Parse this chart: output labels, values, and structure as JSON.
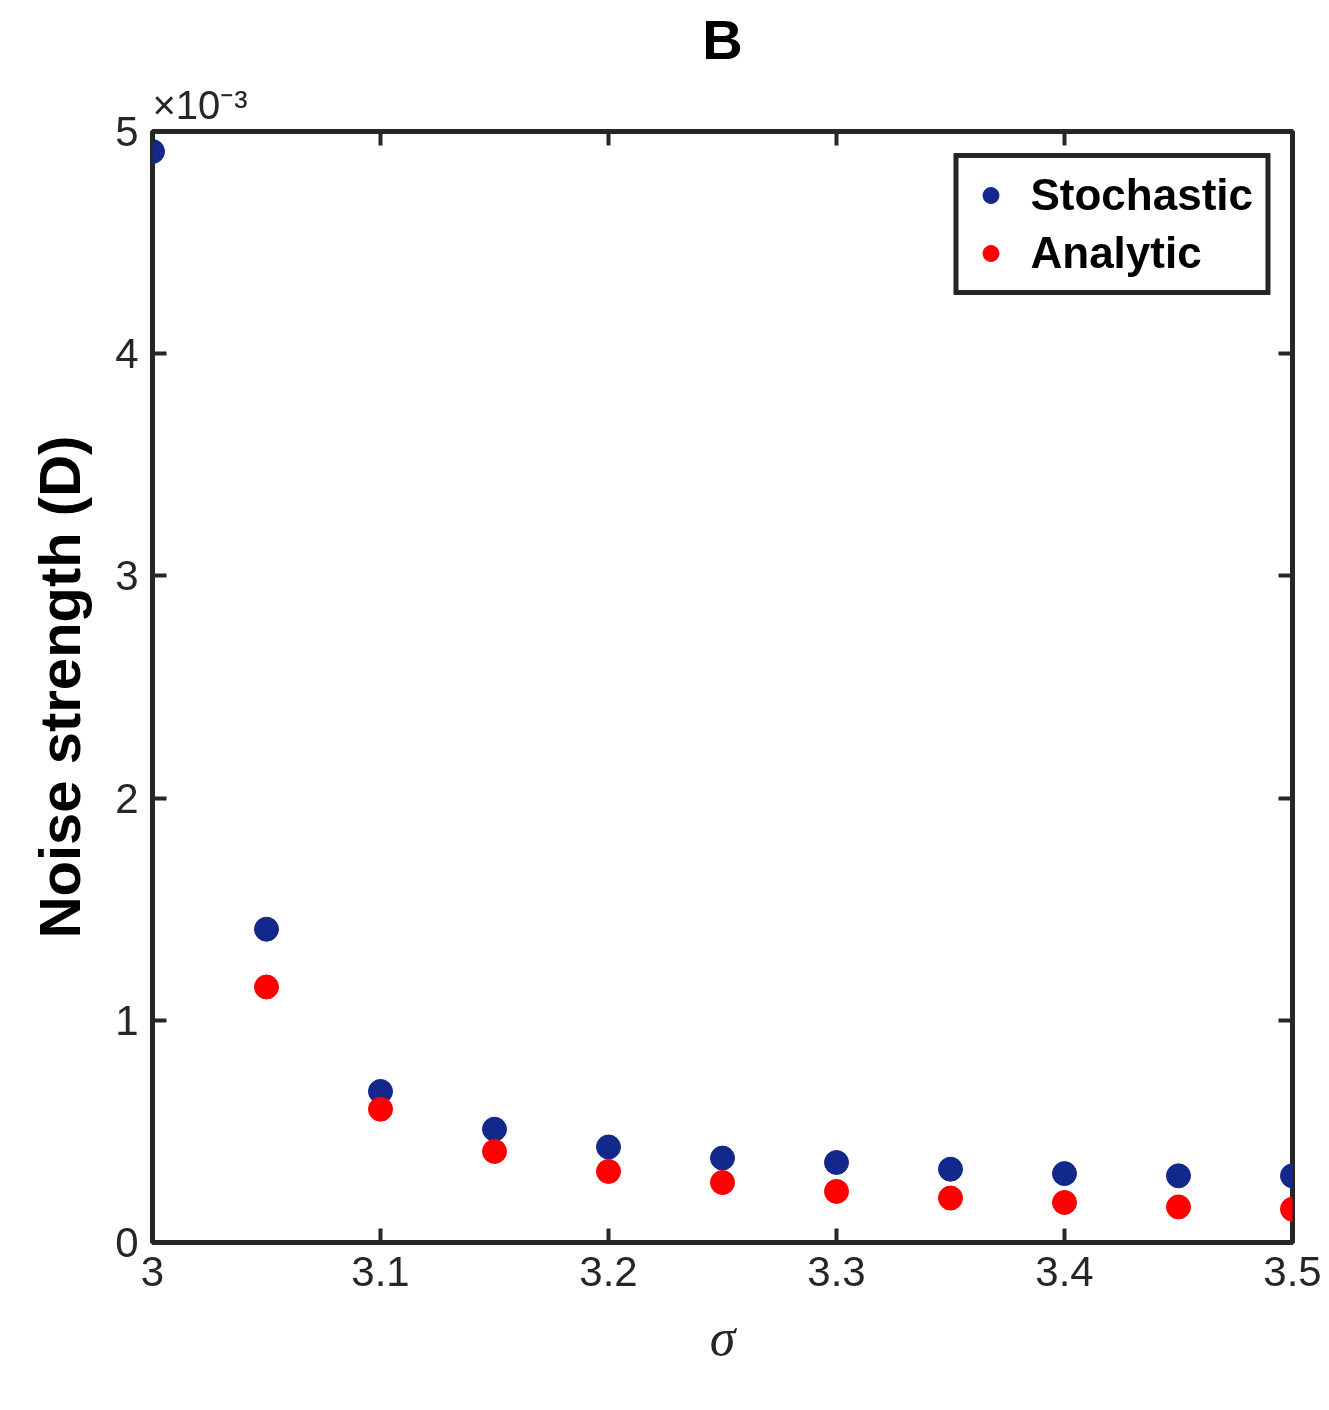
{
  "chart_data": {
    "type": "scatter",
    "title": "B",
    "xlabel": "σ",
    "ylabel": "Noise strength (D)",
    "x": [
      3,
      3.05,
      3.1,
      3.15,
      3.2,
      3.25,
      3.3,
      3.35,
      3.4,
      3.45,
      3.5
    ],
    "series": [
      {
        "name": "Stochastic",
        "color": "#12288a",
        "values": [
          4.91,
          1.41,
          0.68,
          0.51,
          0.43,
          0.38,
          0.36,
          0.33,
          0.31,
          0.3,
          0.3
        ]
      },
      {
        "name": "Analytic",
        "color": "#ff0000",
        "values": [
          null,
          1.15,
          0.6,
          0.41,
          0.32,
          0.27,
          0.23,
          0.2,
          0.18,
          0.16,
          0.15
        ]
      }
    ],
    "annotations": [
      "×10⁻³"
    ],
    "xlim": [
      3,
      3.5
    ],
    "xticks": [
      3,
      3.1,
      3.2,
      3.3,
      3.4,
      3.5
    ],
    "ylim": [
      0,
      5
    ],
    "yticks": [
      0,
      1,
      2,
      3,
      4,
      5
    ],
    "marker": "circle",
    "legend": "top right",
    "grid": false
  }
}
